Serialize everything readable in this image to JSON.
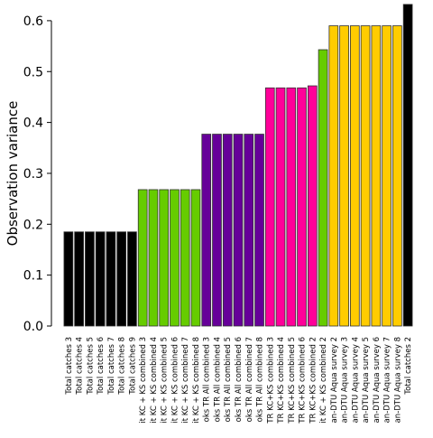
{
  "chart_data": {
    "type": "bar",
    "title": "",
    "xlabel": "",
    "ylabel": "Observation variance",
    "ylim": [
      0,
      0.63
    ],
    "yticks": [
      "0.0",
      "0.1",
      "0.2",
      "0.3",
      "0.4",
      "0.5",
      "0.6"
    ],
    "grid": false,
    "legend": "none",
    "categories": [
      "Total catches 3",
      "Total catches 4",
      "Total catches 5",
      "Total catches 6",
      "Total catches 7",
      "Total catches 8",
      "Total catches 9",
      "it KC + KS combined 3",
      "it KC + KS combined 4",
      "it KC + KS combined 5",
      "it KC + KS combined 6",
      "it KC + KS combined 7",
      "it KC + KS combined 8",
      "oks TR All combined 3",
      "oks TR All combined 4",
      "oks TR All combined 5",
      "oks TR All combined 6",
      "oks TR All combined 7",
      "oks TR All combined 8",
      "TR KC+KS combined 3",
      "TR KC+KS combined 4",
      "TR KC+KS combined 5",
      "TR KC+KS combined 6",
      "TR KC+KS combined 2",
      "it KC + KS combined 2",
      "an-DTU Aqua survey 2",
      "an-DTU Aqua survey 3",
      "an-DTU Aqua survey 4",
      "an-DTU Aqua survey 5",
      "an-DTU Aqua survey 6",
      "an-DTU Aqua survey 7",
      "an-DTU Aqua survey 8",
      "Total catches 2"
    ],
    "values": [
      0.185,
      0.185,
      0.185,
      0.185,
      0.185,
      0.185,
      0.185,
      0.268,
      0.268,
      0.268,
      0.268,
      0.268,
      0.268,
      0.377,
      0.377,
      0.377,
      0.377,
      0.377,
      0.377,
      0.468,
      0.468,
      0.468,
      0.468,
      0.472,
      0.543,
      0.59,
      0.59,
      0.59,
      0.59,
      0.59,
      0.59,
      0.59,
      0.632
    ],
    "colors": [
      "#000000",
      "#000000",
      "#000000",
      "#000000",
      "#000000",
      "#000000",
      "#000000",
      "#66cc00",
      "#66cc00",
      "#66cc00",
      "#66cc00",
      "#66cc00",
      "#66cc00",
      "#660099",
      "#660099",
      "#660099",
      "#660099",
      "#660099",
      "#660099",
      "#ff0099",
      "#ff0099",
      "#ff0099",
      "#ff0099",
      "#ff0099",
      "#66cc00",
      "#ffcc00",
      "#ffcc00",
      "#ffcc00",
      "#ffcc00",
      "#ffcc00",
      "#ffcc00",
      "#ffcc00",
      "#000000"
    ],
    "bar_edge_color": "#333333"
  }
}
